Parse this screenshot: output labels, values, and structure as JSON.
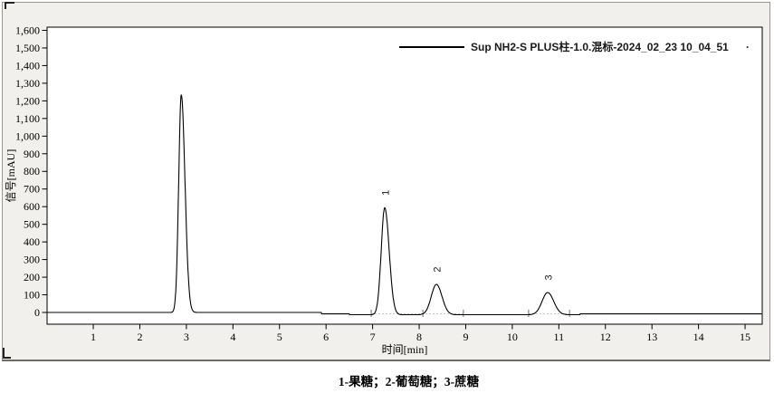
{
  "panel": {
    "background": "#f1f0ec"
  },
  "chart_data": {
    "type": "line",
    "title": "",
    "xlabel": "时间[min]",
    "ylabel": "信号[mAU]",
    "x_ticks": [
      "1",
      "2",
      "3",
      "4",
      "5",
      "6",
      "7",
      "8",
      "9",
      "10",
      "11",
      "12",
      "13",
      "14",
      "15"
    ],
    "y_ticks": [
      "0",
      "100",
      "200",
      "300",
      "400",
      "500",
      "600",
      "700",
      "800",
      "900",
      "1,000",
      "1,100",
      "1,200",
      "1,300",
      "1,400",
      "1,500",
      "1,600"
    ],
    "xlim": [
      0,
      15.37
    ],
    "ylim": [
      -67,
      1618
    ],
    "grid": false,
    "trace_color": "#000000",
    "legend": {
      "label": "Sup NH2-S PLUS柱-1.0.混标-2024_02_23 10_04_51",
      "trailing_mark": ".",
      "position": "top-right"
    },
    "peaks": [
      {
        "label": "",
        "compound": "",
        "rt_min": 2.89,
        "height_mAU": 1235,
        "sigma_left": 0.055,
        "sigma_right": 0.08
      },
      {
        "label": "1",
        "compound": "果糖",
        "rt_min": 7.26,
        "height_mAU": 607,
        "sigma_left": 0.075,
        "sigma_right": 0.095
      },
      {
        "label": "2",
        "compound": "葡萄糖",
        "rt_min": 8.37,
        "height_mAU": 172,
        "sigma_left": 0.11,
        "sigma_right": 0.12
      },
      {
        "label": "3",
        "compound": "蔗糖",
        "rt_min": 10.76,
        "height_mAU": 126,
        "sigma_left": 0.12,
        "sigma_right": 0.13
      }
    ],
    "baseline_mAU": 0,
    "baseline_drift_mAU": [
      [
        0,
        0
      ],
      [
        5.9,
        -8
      ],
      [
        6.5,
        -13
      ],
      [
        11.45,
        -8
      ]
    ],
    "integration_marks_min": [
      6.97,
      8.08,
      8.95,
      10.35,
      11.23
    ],
    "integration_baselines_min": [
      [
        6.97,
        8.95
      ],
      [
        10.35,
        11.23
      ]
    ]
  },
  "caption": {
    "text": "1-果糖；2-葡萄糖；3-蔗糖"
  }
}
